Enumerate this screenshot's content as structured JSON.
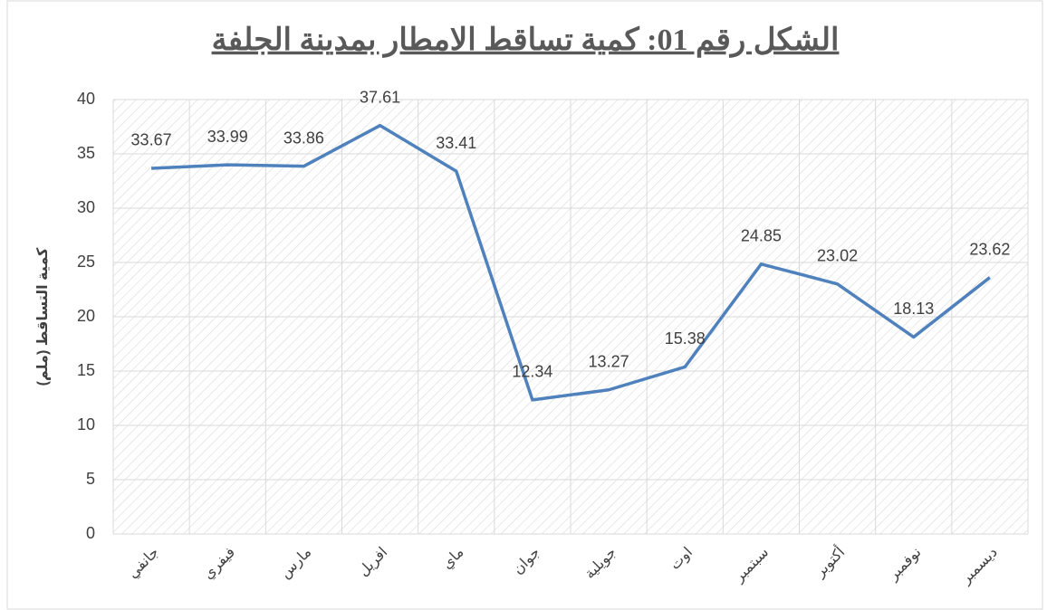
{
  "chart_data": {
    "type": "line",
    "title": "الشكل رقم 01: كمية تساقط الامطار بمدينة الجلفة",
    "y_label": "كمية التساقط (ملم)",
    "categories": [
      "جانفي",
      "فيفري",
      "مارس",
      "افريل",
      "ماي",
      "جوان",
      "جويلية",
      "اوت",
      "سبتمبر",
      "أكتوبر",
      "نوفمبر",
      "ديسمبر"
    ],
    "values": [
      33.67,
      33.99,
      33.86,
      37.61,
      33.41,
      12.34,
      13.27,
      15.38,
      24.85,
      23.02,
      18.13,
      23.62
    ],
    "color": "#4f81bd",
    "ylim": [
      0,
      40
    ],
    "yticks": [
      0,
      5,
      10,
      15,
      20,
      25,
      30,
      35,
      40
    ],
    "grid": true
  }
}
